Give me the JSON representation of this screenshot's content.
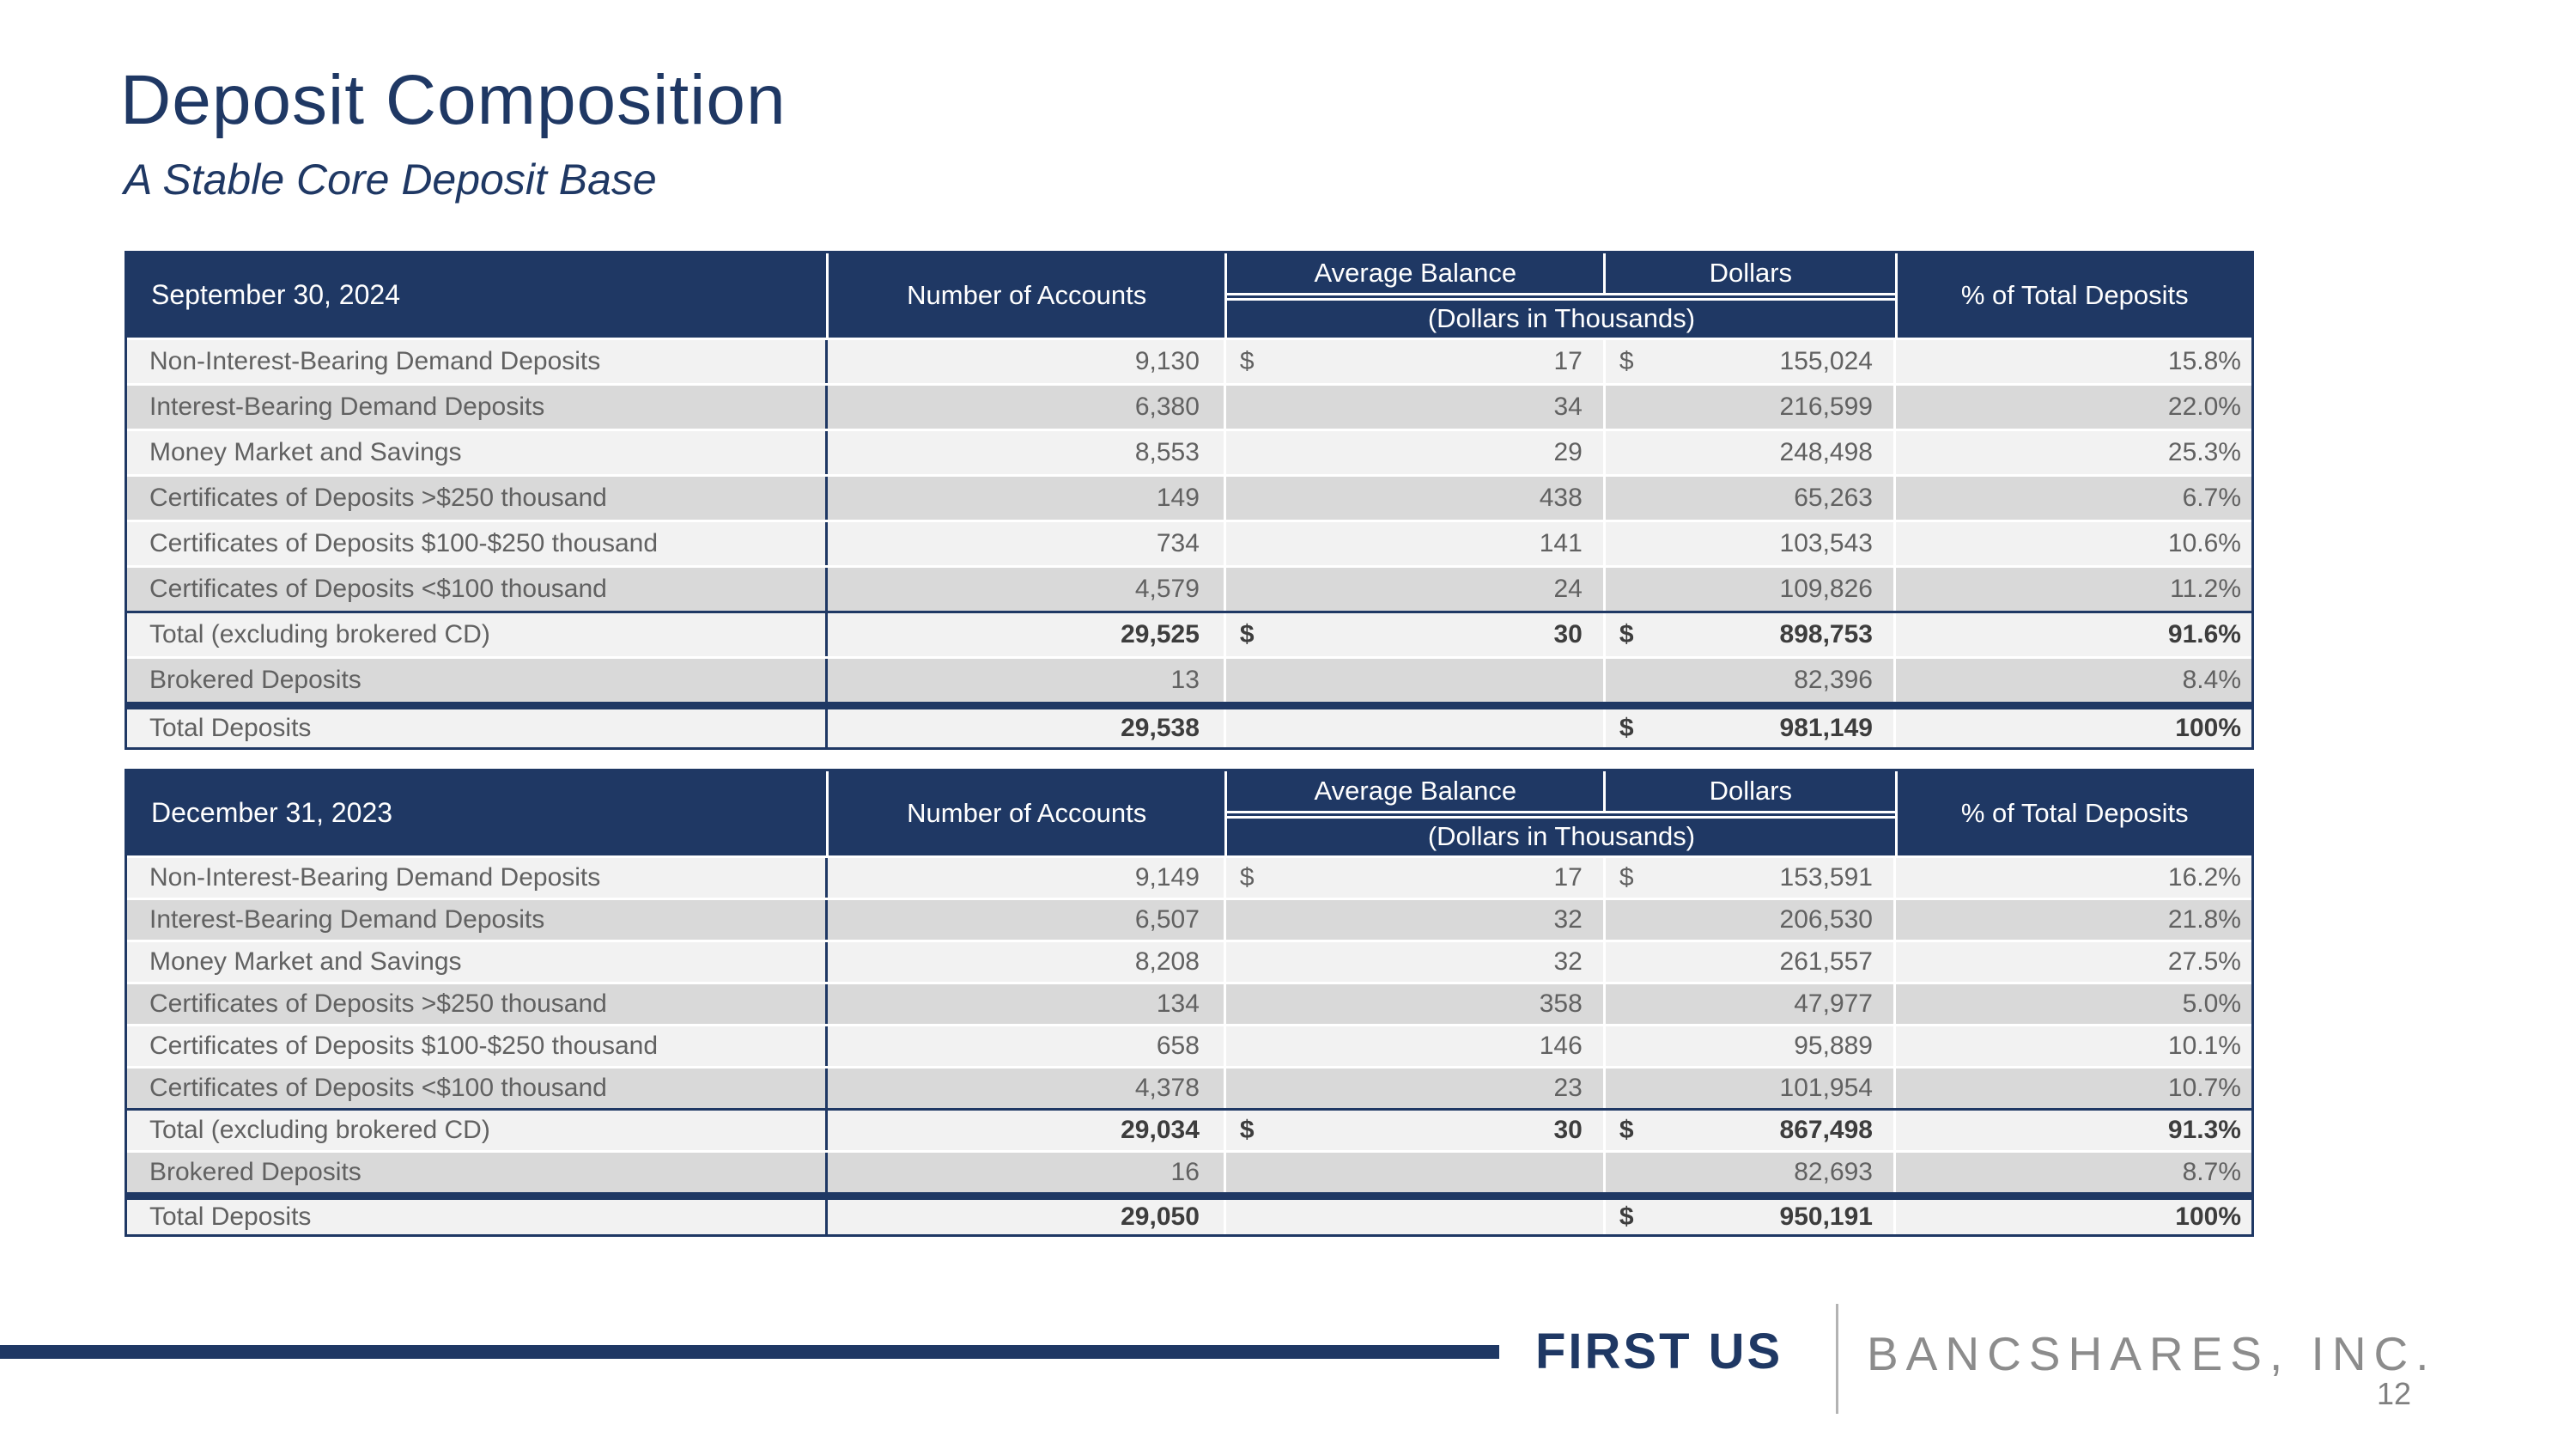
{
  "title": "Deposit Composition",
  "subtitle": "A Stable Core Deposit Base",
  "colors": {
    "navy": "#1F3864",
    "row_light": "#F2F2F2",
    "row_dark": "#D9D9D9",
    "body_text_gray": "#616161",
    "total_text_gray": "#3d3d3d",
    "brand_gray": "#8C8C8C"
  },
  "tables": [
    {
      "header": {
        "date": "September 30, 2024",
        "accounts": "Number of Accounts",
        "avg_balance": "Average Balance",
        "dollars": "Dollars",
        "subnote": "(Dollars in Thousands)",
        "pct": "% of Total Deposits"
      },
      "rows": [
        {
          "label": "Non-Interest-Bearing Demand Deposits",
          "accounts": "9,130",
          "avg_ds": "$",
          "avg": "17",
          "dol_ds": "$",
          "dollars": "155,024",
          "pct": "15.8%"
        },
        {
          "label": "Interest-Bearing Demand Deposits",
          "accounts": "6,380",
          "avg_ds": "",
          "avg": "34",
          "dol_ds": "",
          "dollars": "216,599",
          "pct": "22.0%"
        },
        {
          "label": "Money Market and Savings",
          "accounts": "8,553",
          "avg_ds": "",
          "avg": "29",
          "dol_ds": "",
          "dollars": "248,498",
          "pct": "25.3%"
        },
        {
          "label": "Certificates of Deposits >$250 thousand",
          "accounts": "149",
          "avg_ds": "",
          "avg": "438",
          "dol_ds": "",
          "dollars": "65,263",
          "pct": "6.7%"
        },
        {
          "label": "Certificates of Deposits $100-$250 thousand",
          "accounts": "734",
          "avg_ds": "",
          "avg": "141",
          "dol_ds": "",
          "dollars": "103,543",
          "pct": "10.6%"
        },
        {
          "label": "Certificates of Deposits <$100 thousand",
          "accounts": "4,579",
          "avg_ds": "",
          "avg": "24",
          "dol_ds": "",
          "dollars": "109,826",
          "pct": "11.2%"
        },
        {
          "label": "Total (excluding brokered CD)",
          "accounts": "29,525",
          "avg_ds": "$",
          "avg": "30",
          "dol_ds": "$",
          "dollars": "898,753",
          "pct": "91.6%"
        },
        {
          "label": "Brokered Deposits",
          "accounts": "13",
          "avg_ds": "",
          "avg": "",
          "dol_ds": "",
          "dollars": "82,396",
          "pct": "8.4%"
        },
        {
          "label": "Total Deposits",
          "accounts": "29,538",
          "avg_ds": "",
          "avg": "",
          "dol_ds": "$",
          "dollars": "981,149",
          "pct": "100%"
        }
      ]
    },
    {
      "header": {
        "date": "December 31, 2023",
        "accounts": "Number of Accounts",
        "avg_balance": "Average Balance",
        "dollars": "Dollars",
        "subnote": "(Dollars in Thousands)",
        "pct": "% of Total Deposits"
      },
      "rows": [
        {
          "label": "Non-Interest-Bearing Demand Deposits",
          "accounts": "9,149",
          "avg_ds": "$",
          "avg": "17",
          "dol_ds": "$",
          "dollars": "153,591",
          "pct": "16.2%"
        },
        {
          "label": "Interest-Bearing Demand Deposits",
          "accounts": "6,507",
          "avg_ds": "",
          "avg": "32",
          "dol_ds": "",
          "dollars": "206,530",
          "pct": "21.8%"
        },
        {
          "label": "Money Market and Savings",
          "accounts": "8,208",
          "avg_ds": "",
          "avg": "32",
          "dol_ds": "",
          "dollars": "261,557",
          "pct": "27.5%"
        },
        {
          "label": "Certificates of Deposits >$250 thousand",
          "accounts": "134",
          "avg_ds": "",
          "avg": "358",
          "dol_ds": "",
          "dollars": "47,977",
          "pct": "5.0%"
        },
        {
          "label": "Certificates of Deposits $100-$250 thousand",
          "accounts": "658",
          "avg_ds": "",
          "avg": "146",
          "dol_ds": "",
          "dollars": "95,889",
          "pct": "10.1%"
        },
        {
          "label": "Certificates of Deposits <$100 thousand",
          "accounts": "4,378",
          "avg_ds": "",
          "avg": "23",
          "dol_ds": "",
          "dollars": "101,954",
          "pct": "10.7%"
        },
        {
          "label": "Total (excluding brokered CD)",
          "accounts": "29,034",
          "avg_ds": "$",
          "avg": "30",
          "dol_ds": "$",
          "dollars": "867,498",
          "pct": "91.3%"
        },
        {
          "label": "Brokered Deposits",
          "accounts": "16",
          "avg_ds": "",
          "avg": "",
          "dol_ds": "",
          "dollars": "82,693",
          "pct": "8.7%"
        },
        {
          "label": "Total Deposits",
          "accounts": "29,050",
          "avg_ds": "",
          "avg": "",
          "dol_ds": "$",
          "dollars": "950,191",
          "pct": "100%"
        }
      ]
    }
  ],
  "footer": {
    "brand_primary": "FIRST US",
    "brand_secondary": "BANCSHARES, INC.",
    "page_number": "12"
  }
}
